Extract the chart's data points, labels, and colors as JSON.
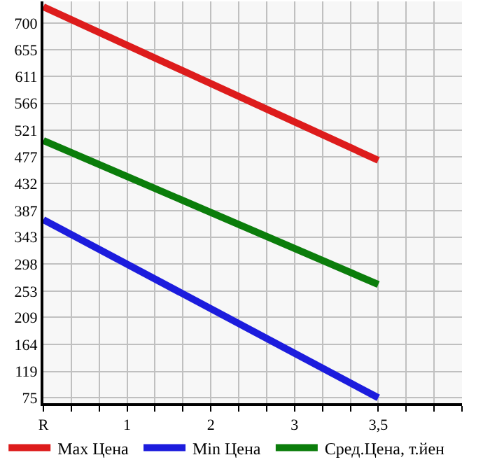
{
  "chart_data": {
    "type": "line",
    "categories": [
      "R",
      "1",
      "2",
      "3",
      "3,5",
      null
    ],
    "series": [
      {
        "name": "Max Цена",
        "color": "#dd1c1c",
        "values": [
          727,
          null,
          null,
          null,
          471,
          null
        ]
      },
      {
        "name": "Min Цена",
        "color": "#1c1cdd",
        "values": [
          372,
          null,
          null,
          null,
          75,
          null
        ]
      },
      {
        "name": "Сред.Цена, т.йен",
        "color": "#0b7d0b",
        "values": [
          504,
          null,
          null,
          null,
          264,
          null
        ]
      }
    ],
    "ylim": [
      66,
      736
    ],
    "yticks": [
      75,
      119,
      164,
      209,
      253,
      298,
      343,
      387,
      432,
      477,
      521,
      566,
      611,
      655,
      700
    ],
    "grid": true,
    "legend": "bottom",
    "marker": "none",
    "line_style": "solid"
  }
}
